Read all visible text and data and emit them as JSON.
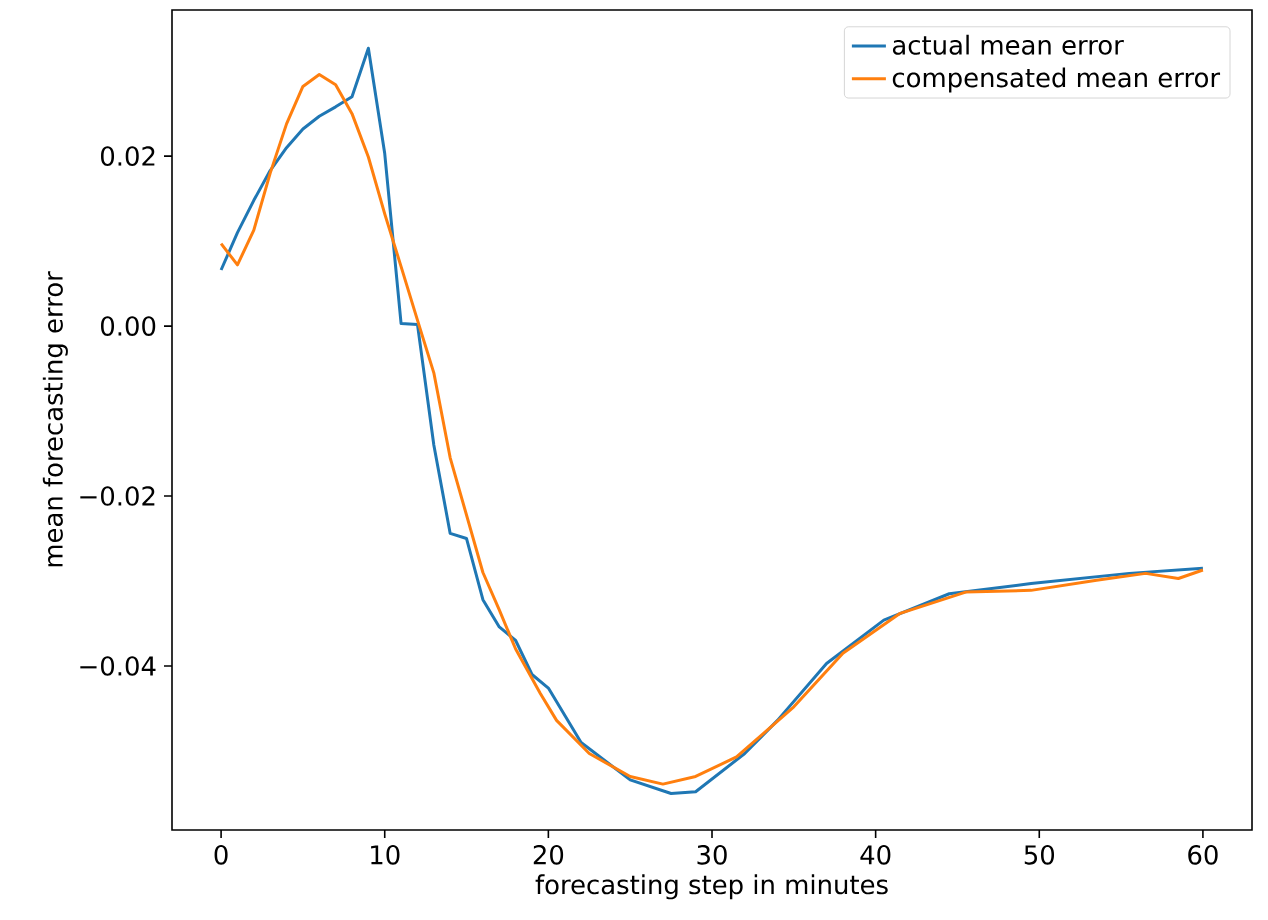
{
  "chart_data": {
    "type": "line",
    "xlabel": "forecasting step in minutes",
    "ylabel": "mean forecasting error",
    "xlim": [
      -3,
      63
    ],
    "ylim": [
      -0.0593,
      0.0372
    ],
    "xticks": [
      0,
      10,
      20,
      30,
      40,
      50,
      60
    ],
    "yticks": [
      {
        "value": -0.04,
        "label": "−0.04"
      },
      {
        "value": -0.02,
        "label": "−0.02"
      },
      {
        "value": 0.0,
        "label": "0.00"
      },
      {
        "value": 0.02,
        "label": "0.02"
      }
    ],
    "legend": "top right",
    "grid": false,
    "marker": "none",
    "line_style": "solid",
    "series": [
      {
        "name": "actual mean error",
        "color": "#1f77b4",
        "x": [
          0,
          1,
          2,
          3,
          4,
          5,
          6,
          7,
          8,
          9,
          10,
          11,
          12,
          13,
          14,
          15,
          16,
          17,
          18,
          19,
          20,
          22,
          25,
          27.5,
          29,
          32,
          34,
          37,
          40.5,
          44.5,
          49.5,
          55.5,
          60
        ],
        "values": [
          0.0066,
          0.011,
          0.0148,
          0.0183,
          0.021,
          0.0232,
          0.0247,
          0.0258,
          0.027,
          0.0327,
          0.0203,
          0.0003,
          0.0002,
          -0.014,
          -0.0244,
          -0.025,
          -0.0322,
          -0.0354,
          -0.037,
          -0.041,
          -0.0426,
          -0.049,
          -0.0534,
          -0.055,
          -0.0548,
          -0.0503,
          -0.0464,
          -0.0397,
          -0.0346,
          -0.0315,
          -0.0303,
          -0.0291,
          -0.0285
        ]
      },
      {
        "name": "compensated mean error",
        "color": "#ff7f0e",
        "x": [
          0,
          1,
          2,
          3,
          4,
          5,
          6,
          7,
          8,
          9,
          10,
          11,
          12,
          13,
          14,
          16,
          17,
          18,
          19.5,
          20.5,
          22.5,
          25,
          27,
          29,
          31.5,
          35,
          38,
          41.5,
          45.5,
          49.5,
          53.5,
          56.5,
          58.5,
          60
        ],
        "values": [
          0.0097,
          0.0072,
          0.0113,
          0.018,
          0.0238,
          0.0282,
          0.0296,
          0.0284,
          0.025,
          0.0199,
          0.0132,
          0.007,
          0.0007,
          -0.0055,
          -0.0155,
          -0.029,
          -0.0334,
          -0.038,
          -0.0432,
          -0.0464,
          -0.0503,
          -0.053,
          -0.0539,
          -0.053,
          -0.0507,
          -0.0448,
          -0.0385,
          -0.0338,
          -0.0313,
          -0.0311,
          -0.0299,
          -0.0291,
          -0.0297,
          -0.0287
        ]
      }
    ]
  }
}
